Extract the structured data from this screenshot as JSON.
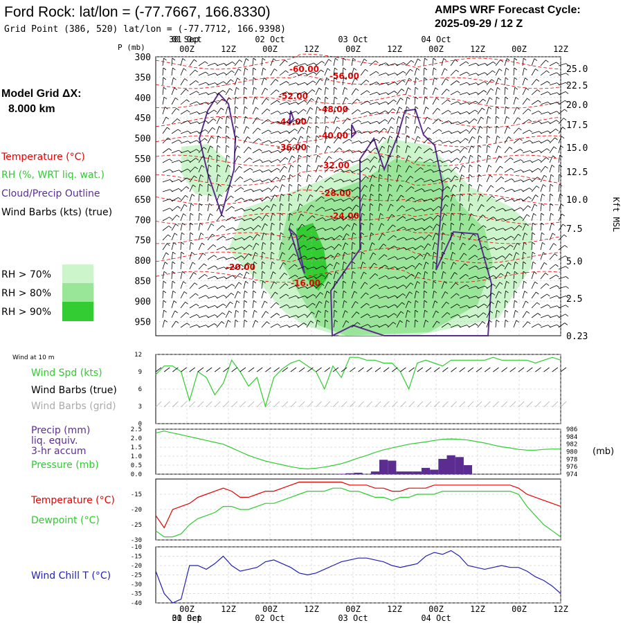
{
  "header": {
    "title": "Ford Rock:  lat/lon = (-77.7667, 166.8330)",
    "grid_point": "Grid Point (386, 520) lat/lon = (-77.7712, 166.9398)",
    "cycle_label": "AMPS WRF Forecast Cycle:",
    "cycle_value": "2025-09-29 / 12  Z"
  },
  "left_legend": {
    "model_grid_label": "Model Grid ΔX:",
    "model_grid_value": "8.000 km",
    "temperature": "Temperature (°C)",
    "rh": "RH (%, WRT liq. wat.)",
    "cloud": "Cloud/Precip Outline",
    "wind": "Wind Barbs (kts) (true)",
    "rh70": "RH > 70%",
    "rh80": "RH > 80%",
    "rh90": "RH > 90%"
  },
  "colors": {
    "temperature": "#e60000",
    "rh70": "#ccf5cc",
    "rh80": "#99e699",
    "rh90": "#33cc33",
    "cloud_outline": "#5c2d91",
    "speed": "#2ecc2e",
    "grid_barb": "#aaaaaa",
    "precip": "#5c2d91",
    "chill": "#1f1fb4"
  },
  "time_axis": {
    "ticks": [
      "00Z",
      "12Z",
      "00Z",
      "12Z",
      "00Z",
      "12Z",
      "00Z",
      "12Z",
      "00Z",
      "12Z"
    ],
    "dates": [
      "30 Sep",
      "01 Oct",
      "02 Oct",
      "03 Oct",
      "04 Oct"
    ],
    "pre_date": "30 Sep",
    "pre_date_bottom": "30 Sep"
  },
  "chart_data": [
    {
      "type": "heatmap",
      "name": "cross_section",
      "ylabel": "P (mb)",
      "right_label": "Kft MSL",
      "pressure_ticks": [
        300,
        350,
        400,
        450,
        500,
        550,
        600,
        650,
        700,
        750,
        800,
        850,
        900,
        950
      ],
      "height_ticks": [
        "25.0",
        "22.5",
        "20.0",
        "17.5",
        "15.0",
        "12.5",
        "10.0",
        "7.5",
        "5.0",
        "2.5",
        "0.23"
      ],
      "temperature_contours": [
        "-60.00",
        "-56.00",
        "-52.00",
        "-48.00",
        "-44.00",
        "-40.00",
        "-36.00",
        "-32.00",
        "-28.00",
        "-24.00",
        "-20.00",
        "-16.00"
      ]
    },
    {
      "type": "line",
      "name": "wind_10m",
      "panel_label": "Wind at 10 m",
      "series_labels": {
        "speed": "Wind Spd (kts)",
        "barbs_true": "Wind Barbs (true)",
        "barbs_grid": "Wind Barbs (grid)"
      },
      "yticks": [
        0,
        3,
        6,
        9,
        12
      ],
      "ylim": [
        0,
        12
      ],
      "values": [
        8.5,
        10,
        10,
        9,
        4,
        9,
        8,
        5,
        7,
        11,
        9,
        6.5,
        8,
        3,
        8,
        9.5,
        10.5,
        11,
        10,
        9,
        6,
        10,
        8,
        11.5,
        11.5,
        11,
        11,
        10.5,
        10.5,
        9,
        6,
        10.5,
        11,
        10.5,
        10,
        11,
        11,
        11,
        11,
        11,
        11.5,
        11,
        11,
        11,
        11,
        10.5,
        11,
        11.5,
        11
      ]
    },
    {
      "type": "bar",
      "name": "precip_pressure",
      "series_labels": {
        "precip": "Precip (mm)",
        "liq": "liq. equiv.",
        "accum": "3-hr accum",
        "pressure": "Pressure (mb)"
      },
      "precip_yticks": [
        "2.5",
        "2.0",
        "1.5",
        "1.0",
        "0.5",
        "0.0"
      ],
      "precip_ylim": [
        0,
        2.5
      ],
      "pressure_yticks": [
        "986",
        "984",
        "982",
        "980",
        "978",
        "976",
        "974"
      ],
      "pressure_ylim": [
        974,
        986
      ],
      "precip": [
        0,
        0,
        0,
        0,
        0,
        0,
        0,
        0,
        0,
        0,
        0,
        0,
        0,
        0,
        0,
        0,
        0,
        0,
        0,
        0,
        0,
        0,
        0.02,
        0.05,
        0.08,
        0,
        0.15,
        0.8,
        0.75,
        0.15,
        0.15,
        0.15,
        0.35,
        0.25,
        0.85,
        1.05,
        0.95,
        0.5,
        0,
        0,
        0,
        0,
        0,
        0,
        0,
        0,
        0,
        0,
        0
      ],
      "pressure": [
        985,
        985.5,
        985,
        984.5,
        984,
        983.5,
        983,
        982.5,
        982,
        981,
        980,
        979,
        978.2,
        977.5,
        977,
        976.5,
        976,
        975.6,
        975.4,
        975.6,
        975.9,
        976.3,
        976.8,
        977.5,
        978.3,
        979,
        979.8,
        980.5,
        981,
        981.5,
        982,
        982.3,
        982.6,
        983,
        983.3,
        983.4,
        983.3,
        983.1,
        982.7,
        982.3,
        981.8,
        981.3,
        981,
        980.6,
        980.4,
        980.4,
        980.6,
        980.7,
        980.7
      ]
    },
    {
      "type": "line",
      "name": "temp_dewpoint",
      "series_labels": {
        "temperature": "Temperature (°C)",
        "dewpoint": "Dewpoint (°C)"
      },
      "yticks": [
        -15,
        -20,
        -25,
        -30
      ],
      "ylim": [
        -30,
        -10
      ],
      "temperature": [
        -22,
        -26,
        -20,
        -19,
        -18,
        -16,
        -15,
        -14,
        -13,
        -14,
        -16,
        -16,
        -15,
        -14,
        -14,
        -13,
        -12,
        -11,
        -11,
        -11,
        -11,
        -11,
        -11,
        -12,
        -12,
        -12,
        -13,
        -13,
        -14,
        -14,
        -13,
        -13,
        -13,
        -12,
        -12,
        -12,
        -12,
        -12,
        -12,
        -12,
        -12,
        -12,
        -12,
        -13,
        -15,
        -16,
        -17,
        -18,
        -19
      ],
      "dewpoint": [
        -27,
        -29,
        -29,
        -28,
        -25,
        -23,
        -22,
        -21,
        -19,
        -19,
        -20,
        -20,
        -19,
        -18,
        -18,
        -17,
        -16,
        -15,
        -14,
        -14,
        -14,
        -13,
        -13,
        -14,
        -14,
        -15,
        -16,
        -16,
        -17,
        -16,
        -16,
        -15,
        -15,
        -15,
        -14,
        -14,
        -14,
        -14,
        -14,
        -14,
        -14,
        -14,
        -14,
        -15,
        -19,
        -22,
        -25,
        -27,
        -29
      ]
    },
    {
      "type": "line",
      "name": "wind_chill",
      "series_labels": {
        "chill": "Wind Chill T (°C)"
      },
      "yticks": [
        -10,
        -15,
        -20,
        -25,
        -30,
        -35,
        -40
      ],
      "ylim": [
        -40,
        -10
      ],
      "values": [
        -23,
        -35,
        -40,
        -38,
        -20,
        -20,
        -22,
        -19,
        -15,
        -20,
        -23,
        -22,
        -21,
        -18,
        -17,
        -19,
        -21,
        -24,
        -25,
        -24,
        -22,
        -20,
        -18,
        -17,
        -16,
        -16,
        -17,
        -18,
        -20,
        -21,
        -20,
        -19,
        -15,
        -13,
        -14,
        -12,
        -15,
        -20,
        -21,
        -22,
        -21,
        -20,
        -21,
        -21,
        -23,
        -26,
        -28,
        -31,
        -35
      ]
    }
  ]
}
